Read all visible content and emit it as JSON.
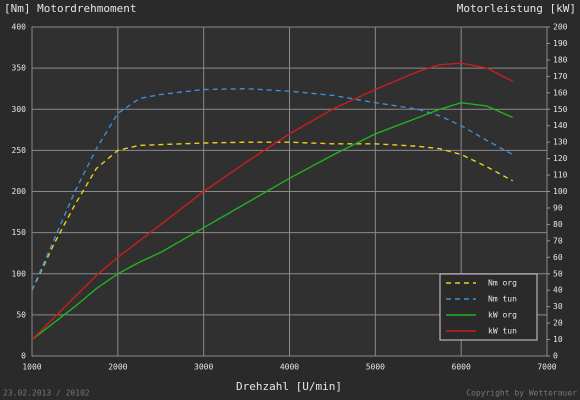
{
  "chart_data": {
    "type": "line",
    "title_left": "[Nm] Motordrehmoment",
    "title_right": "Motorleistung [kW]",
    "xlabel": "Drehzahl [U/min]",
    "footer_left": "23.02.2013 / 20102",
    "footer_right": "Copyright by Wetterauer",
    "x": [
      1000,
      1250,
      1500,
      1750,
      2000,
      2250,
      2500,
      3000,
      3500,
      4000,
      4500,
      5000,
      5500,
      5750,
      6000,
      6300,
      6600
    ],
    "series": [
      {
        "name": "Nm org",
        "color": "#e6d21e",
        "style": "dashed",
        "axis": "y",
        "values": [
          80,
          135,
          184,
          228,
          250,
          256,
          257,
          259,
          260,
          260,
          258,
          258,
          255,
          252,
          245,
          230,
          213
        ]
      },
      {
        "name": "Nm tun",
        "color": "#3c8fd8",
        "style": "dashed",
        "axis": "y",
        "values": [
          80,
          140,
          200,
          252,
          295,
          313,
          318,
          324,
          325,
          322,
          317,
          308,
          300,
          292,
          280,
          262,
          245
        ]
      },
      {
        "name": "kW org",
        "color": "#1fb31f",
        "style": "solid",
        "axis": "y2",
        "values": [
          10,
          20,
          30,
          41,
          50,
          57,
          63,
          78,
          93,
          108,
          122,
          135,
          145,
          150,
          154,
          152,
          145
        ]
      },
      {
        "name": "kW tun",
        "color": "#c81e1e",
        "style": "solid",
        "axis": "y2",
        "values": [
          10,
          23,
          36,
          49,
          60,
          70,
          80,
          100,
          118,
          135,
          150,
          162,
          173,
          177,
          178,
          175,
          167
        ]
      }
    ],
    "xlim": [
      1000,
      7000
    ],
    "xticks": [
      1000,
      2000,
      3000,
      4000,
      5000,
      6000,
      7000
    ],
    "ylim": [
      0,
      400
    ],
    "yticks": [
      0,
      50,
      100,
      150,
      200,
      250,
      300,
      350,
      400
    ],
    "y2lim": [
      0,
      200
    ],
    "y2ticks": [
      0,
      10,
      20,
      30,
      40,
      50,
      60,
      70,
      80,
      90,
      100,
      110,
      120,
      130,
      140,
      150,
      160,
      170,
      180,
      190,
      200
    ],
    "grid": true,
    "legend": "lower right"
  }
}
